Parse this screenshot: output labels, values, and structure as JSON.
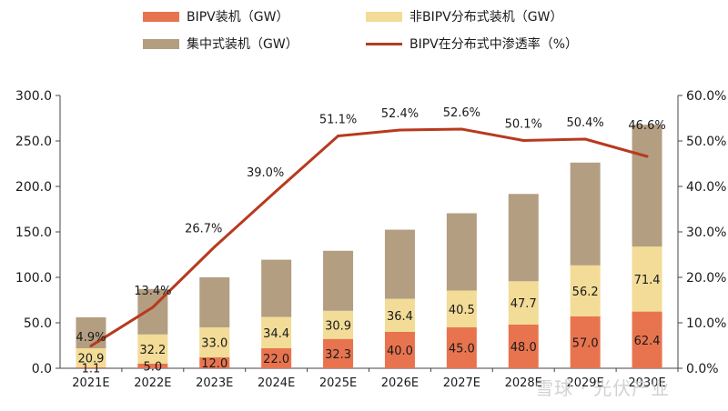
{
  "chart_data": {
    "type": "bar",
    "stacked": true,
    "categories": [
      "2021E",
      "2022E",
      "2023E",
      "2024E",
      "2025E",
      "2026E",
      "2027E",
      "2028E",
      "2029E",
      "2030E"
    ],
    "series": [
      {
        "name": "BIPV装机（GW）",
        "kind": "bar",
        "color": "#E8744F",
        "values": [
          1.1,
          5.0,
          12.0,
          22.0,
          32.3,
          40.0,
          45.0,
          48.0,
          57.0,
          62.4
        ],
        "labels": [
          "1.1",
          "5.0",
          "12.0",
          "22.0",
          "32.3",
          "40.0",
          "45.0",
          "48.0",
          "57.0",
          "62.4"
        ]
      },
      {
        "name": "非BIPV分布式装机（GW）",
        "kind": "bar",
        "color": "#F2DC97",
        "values": [
          20.9,
          32.2,
          33.0,
          34.4,
          30.9,
          36.4,
          40.5,
          47.7,
          56.2,
          71.4
        ],
        "labels": [
          "20.9",
          "32.2",
          "33.0",
          "34.4",
          "30.9",
          "36.4",
          "40.5",
          "47.7",
          "56.2",
          "71.4"
        ]
      },
      {
        "name": "集中式装机（GW）",
        "kind": "bar",
        "color": "#B49E81",
        "values": [
          34,
          50,
          55,
          63,
          66,
          76,
          85,
          96,
          113,
          134
        ]
      },
      {
        "name": "BIPV在分布式中渗透率（%）",
        "kind": "line",
        "axis": "right",
        "color": "#B83A1E",
        "values": [
          4.9,
          13.4,
          26.7,
          39.0,
          51.1,
          52.4,
          52.6,
          50.1,
          50.4,
          46.6
        ],
        "labels": [
          "4.9%",
          "13.4%",
          "26.7%",
          "39.0%",
          "51.1%",
          "52.4%",
          "52.6%",
          "50.1%",
          "50.4%",
          "46.6%"
        ]
      }
    ],
    "y_left": {
      "min": 0,
      "max": 300,
      "step": 50,
      "ticks": [
        "0.0",
        "50.0",
        "100.0",
        "150.0",
        "200.0",
        "250.0",
        "300.0"
      ]
    },
    "y_right": {
      "min": 0,
      "max": 60,
      "step": 10,
      "ticks": [
        "0.0%",
        "10.0%",
        "20.0%",
        "30.0%",
        "40.0%",
        "50.0%",
        "60.0%"
      ]
    },
    "legend_position": "top"
  },
  "watermark": "雪球 · 光伏产业"
}
